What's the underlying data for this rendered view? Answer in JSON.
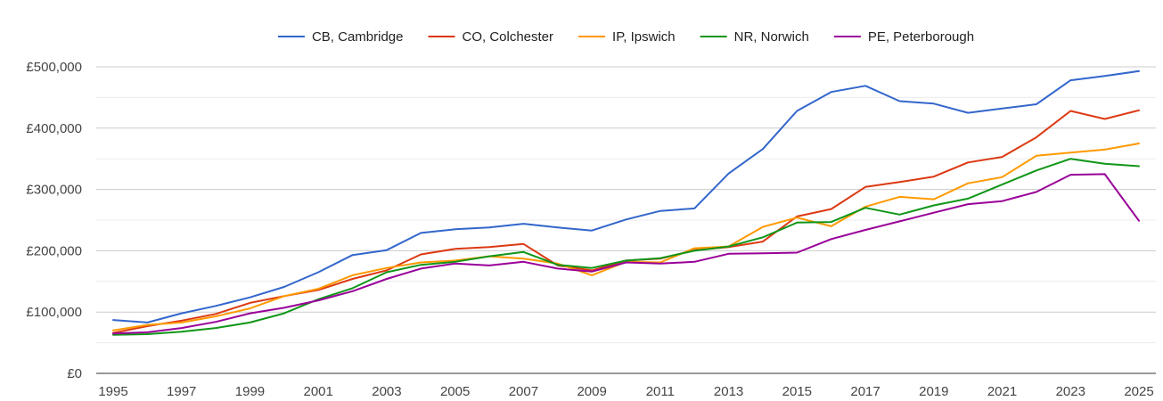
{
  "chart_data": {
    "type": "line",
    "title": "",
    "xlabel": "",
    "ylabel": "",
    "x": [
      1995,
      1996,
      1997,
      1998,
      1999,
      2000,
      2001,
      2002,
      2003,
      2004,
      2005,
      2006,
      2007,
      2008,
      2009,
      2010,
      2011,
      2012,
      2013,
      2014,
      2015,
      2016,
      2017,
      2018,
      2019,
      2020,
      2021,
      2022,
      2023,
      2024,
      2025
    ],
    "xlim": [
      1995,
      2025
    ],
    "ylim": [
      0,
      500000
    ],
    "x_ticks": [
      1995,
      1997,
      1999,
      2001,
      2003,
      2005,
      2007,
      2009,
      2011,
      2013,
      2015,
      2017,
      2019,
      2021,
      2023,
      2025
    ],
    "x_tick_labels": [
      "1995",
      "1997",
      "1999",
      "2001",
      "2003",
      "2005",
      "2007",
      "2009",
      "2011",
      "2013",
      "2015",
      "2017",
      "2019",
      "2021",
      "2023",
      "2025"
    ],
    "y_ticks": [
      0,
      100000,
      200000,
      300000,
      400000,
      500000
    ],
    "y_tick_labels": [
      "£0",
      "£100,000",
      "£200,000",
      "£300,000",
      "£400,000",
      "£500,000"
    ],
    "grid": true,
    "legend_position": "top",
    "series": [
      {
        "name": "CB, Cambridge",
        "color": "#3366cc",
        "values": [
          87000,
          83000,
          98000,
          110000,
          124000,
          141000,
          165000,
          193000,
          201000,
          229000,
          235000,
          238000,
          244000,
          238000,
          233000,
          251000,
          265000,
          269000,
          326000,
          366000,
          428000,
          459000,
          469000,
          444000,
          440000,
          425000,
          432000,
          439000,
          478000,
          485000,
          493000
        ]
      },
      {
        "name": "CO, Colchester",
        "color": "#dc3912",
        "values": [
          66000,
          77000,
          86000,
          97000,
          115000,
          126000,
          136000,
          154000,
          168000,
          194000,
          203000,
          206000,
          211000,
          176000,
          168000,
          184000,
          187000,
          201000,
          206000,
          215000,
          256000,
          268000,
          304000,
          312000,
          321000,
          344000,
          353000,
          385000,
          428000,
          415000,
          429000
        ]
      },
      {
        "name": "IP, Ipswich",
        "color": "#ff9900",
        "values": [
          70000,
          79000,
          83000,
          93000,
          106000,
          126000,
          138000,
          160000,
          172000,
          181000,
          184000,
          191000,
          187000,
          179000,
          160000,
          182000,
          181000,
          204000,
          207000,
          239000,
          254000,
          240000,
          272000,
          288000,
          284000,
          310000,
          320000,
          355000,
          360000,
          365000,
          375000
        ]
      },
      {
        "name": "NR, Norwich",
        "color": "#109618",
        "values": [
          63000,
          64000,
          68000,
          74000,
          83000,
          98000,
          121000,
          139000,
          165000,
          177000,
          182000,
          191000,
          198000,
          177000,
          172000,
          184000,
          188000,
          200000,
          207000,
          222000,
          246000,
          247000,
          270000,
          259000,
          274000,
          285000,
          308000,
          331000,
          350000,
          342000,
          338000
        ]
      },
      {
        "name": "PE, Peterborough",
        "color": "#990099",
        "values": [
          65000,
          67000,
          74000,
          84000,
          98000,
          107000,
          119000,
          134000,
          154000,
          171000,
          179000,
          176000,
          182000,
          171000,
          166000,
          181000,
          179000,
          182000,
          195000,
          196000,
          197000,
          219000,
          234000,
          248000,
          262000,
          276000,
          281000,
          296000,
          324000,
          325000,
          249000
        ]
      }
    ]
  }
}
